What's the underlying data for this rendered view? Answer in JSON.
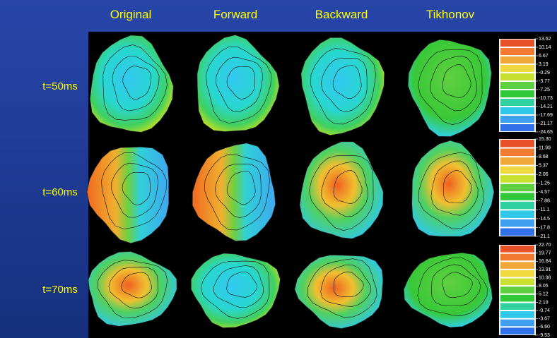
{
  "columns": [
    "Original",
    "Forward",
    "Backward",
    "Tikhonov"
  ],
  "rows": [
    "t=50ms",
    "t=60ms",
    "t=70ms"
  ],
  "colorbars": [
    {
      "labels": [
        "13.62",
        "10.14",
        "6.67",
        "3.19",
        "-0.29",
        "-3.77",
        "-7.25",
        "-10.73",
        "-14.21",
        "-17.69",
        "-21.17",
        "-24.65"
      ]
    },
    {
      "labels": [
        "15.30",
        "11.99",
        "8.68",
        "5.37",
        "2.06",
        "-1.25",
        "-4.57",
        "-7.88",
        "-11.1",
        "-14.5",
        "-17.8",
        "-21.1"
      ]
    },
    {
      "labels": [
        "22.70",
        "19.77",
        "16.84",
        "13.91",
        "10.98",
        "8.05",
        "5.12",
        "2.19",
        "-0.74",
        "-3.67",
        "-6.60",
        "-9.53"
      ]
    }
  ]
}
